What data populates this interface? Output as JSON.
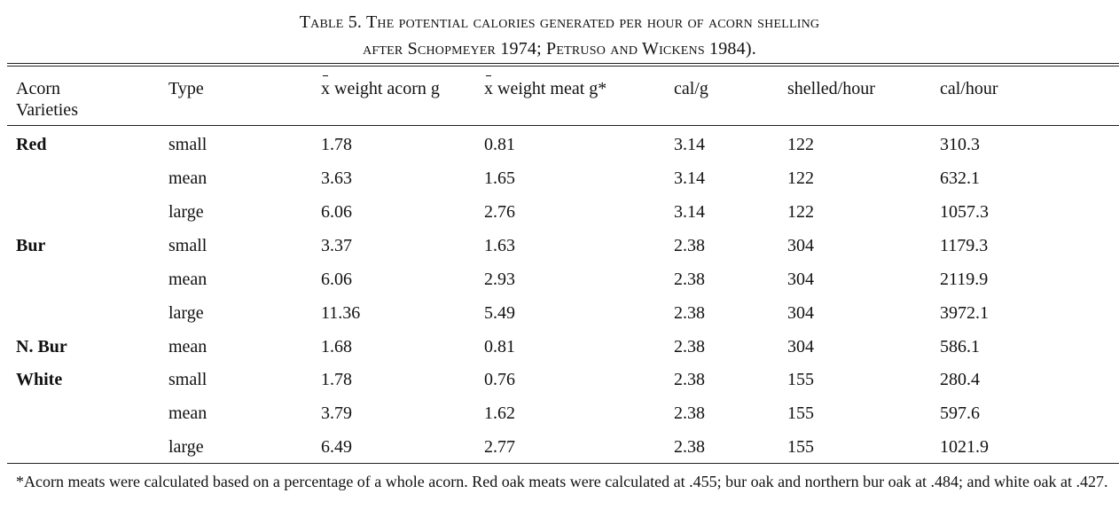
{
  "caption": {
    "line1": "Table 5.  The potential calories generated per hour of acorn shelling",
    "line2": "after Schopmeyer 1974; Petruso and Wickens 1984)."
  },
  "headers": {
    "variety_line1": "Acorn",
    "variety_line2": "Varieties",
    "type": "Type",
    "weight_acorn_symbol": "x",
    "weight_acorn_rest": " weight acorn g",
    "weight_meat_symbol": "x",
    "weight_meat_rest": " weight meat g*",
    "cal_per_g": "cal/g",
    "shelled_hour": "shelled/hour",
    "cal_hour": "cal/hour"
  },
  "rows": [
    {
      "variety": "Red",
      "type": "small",
      "acorn_g": "1.78",
      "meat_g": "0.81",
      "cal_g": "3.14",
      "shelled": "122",
      "cal_hour": "310.3"
    },
    {
      "variety": "",
      "type": "mean",
      "acorn_g": "3.63",
      "meat_g": "1.65",
      "cal_g": "3.14",
      "shelled": "122",
      "cal_hour": "632.1"
    },
    {
      "variety": "",
      "type": "large",
      "acorn_g": "6.06",
      "meat_g": "2.76",
      "cal_g": "3.14",
      "shelled": "122",
      "cal_hour": "1057.3"
    },
    {
      "variety": "Bur",
      "type": "small",
      "acorn_g": "3.37",
      "meat_g": "1.63",
      "cal_g": "2.38",
      "shelled": "304",
      "cal_hour": "1179.3"
    },
    {
      "variety": "",
      "type": "mean",
      "acorn_g": "6.06",
      "meat_g": "2.93",
      "cal_g": "2.38",
      "shelled": "304",
      "cal_hour": "2119.9"
    },
    {
      "variety": "",
      "type": "large",
      "acorn_g": "11.36",
      "meat_g": "5.49",
      "cal_g": "2.38",
      "shelled": "304",
      "cal_hour": "3972.1"
    },
    {
      "variety": "N. Bur",
      "type": "mean",
      "acorn_g": "1.68",
      "meat_g": "0.81",
      "cal_g": "2.38",
      "shelled": "304",
      "cal_hour": "586.1"
    },
    {
      "variety": "White",
      "type": "small",
      "acorn_g": "1.78",
      "meat_g": "0.76",
      "cal_g": "2.38",
      "shelled": "155",
      "cal_hour": "280.4"
    },
    {
      "variety": "",
      "type": "mean",
      "acorn_g": "3.79",
      "meat_g": "1.62",
      "cal_g": "2.38",
      "shelled": "155",
      "cal_hour": "597.6"
    },
    {
      "variety": "",
      "type": "large",
      "acorn_g": "6.49",
      "meat_g": "2.77",
      "cal_g": "2.38",
      "shelled": "155",
      "cal_hour": "1021.9"
    }
  ],
  "footnote": "*Acorn meats were calculated based on a percentage of a whole acorn.   Red oak meats were calculated at .455; bur oak and northern bur oak at .484; and white oak at .427."
}
